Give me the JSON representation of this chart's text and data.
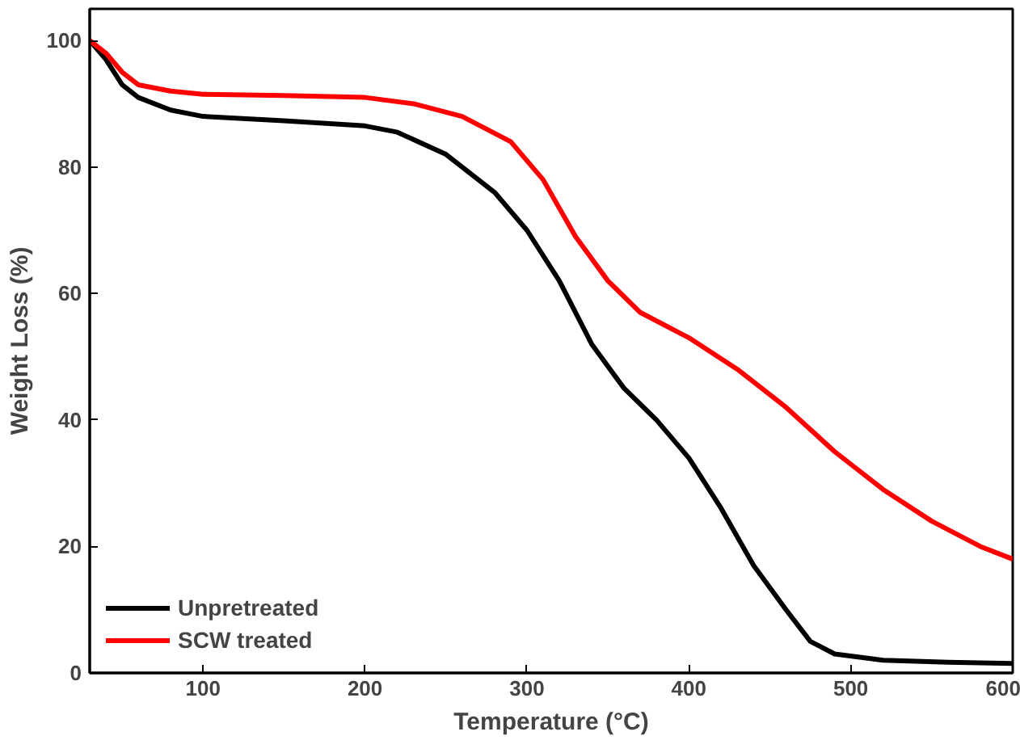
{
  "chart_data": {
    "type": "line",
    "xlabel": "Temperature (°C)",
    "ylabel": "Weight Loss (%)",
    "xlim": [
      30,
      600
    ],
    "ylim": [
      0,
      105
    ],
    "xticks": [
      100,
      200,
      300,
      400,
      500,
      600
    ],
    "yticks": [
      0,
      20,
      40,
      60,
      80,
      100
    ],
    "grid": false,
    "legend": "bottom left",
    "line_style": "solid",
    "series": [
      {
        "name": "Unpretreated",
        "color": "#000000",
        "x": [
          30,
          40,
          50,
          60,
          80,
          100,
          150,
          200,
          220,
          250,
          280,
          300,
          320,
          340,
          360,
          380,
          400,
          420,
          440,
          460,
          475,
          490,
          520,
          560,
          600
        ],
        "values": [
          100,
          97,
          93,
          91,
          89,
          88,
          87.3,
          86.5,
          85.5,
          82,
          76,
          70,
          62,
          52,
          45,
          40,
          34,
          26,
          17,
          10,
          5,
          3,
          2,
          1.7,
          1.5
        ]
      },
      {
        "name": "SCW treated",
        "color": "#ff0000",
        "x": [
          30,
          40,
          50,
          60,
          80,
          100,
          150,
          200,
          230,
          260,
          290,
          310,
          330,
          350,
          370,
          400,
          430,
          460,
          490,
          520,
          550,
          580,
          600
        ],
        "values": [
          100,
          98,
          95,
          93,
          92,
          91.5,
          91.3,
          91,
          90,
          88,
          84,
          78,
          69,
          62,
          57,
          53,
          48,
          42,
          35,
          29,
          24,
          20,
          18
        ]
      }
    ]
  }
}
